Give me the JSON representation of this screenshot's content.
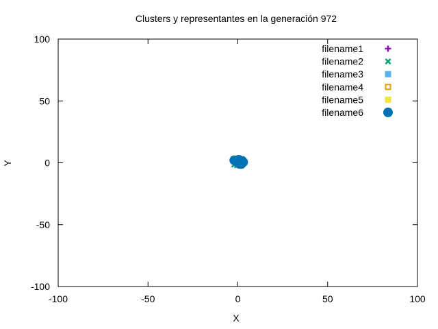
{
  "chart_data": {
    "type": "scatter",
    "title": "Clusters y representantes en la generación 972",
    "xlabel": "X",
    "ylabel": "Y",
    "xlim": [
      -100,
      100
    ],
    "ylim": [
      -100,
      100
    ],
    "xticks": [
      -100,
      -50,
      0,
      50,
      100
    ],
    "yticks": [
      -100,
      -50,
      0,
      50,
      100
    ],
    "x_tick_labels": [
      "-100",
      "-50",
      "0",
      "50",
      "100"
    ],
    "y_tick_labels": [
      "-100",
      "-50",
      "0",
      "50",
      "100"
    ],
    "grid": false,
    "legend_position": "top-right",
    "series": [
      {
        "name": "filename1",
        "marker": "plus",
        "color": "#9400d3",
        "points": []
      },
      {
        "name": "filename2",
        "marker": "cross",
        "color": "#009e73",
        "points": [
          {
            "x": -2.0,
            "y": -1.5
          },
          {
            "x": -0.5,
            "y": -2.0
          },
          {
            "x": 0.5,
            "y": -1.0
          }
        ]
      },
      {
        "name": "filename3",
        "marker": "filled-square",
        "color": "#56b4e9",
        "points": []
      },
      {
        "name": "filename4",
        "marker": "open-square",
        "color": "#e69f00",
        "points": []
      },
      {
        "name": "filename5",
        "marker": "filled-square",
        "color": "#f0e442",
        "points": []
      },
      {
        "name": "filename6",
        "marker": "filled-circle",
        "color": "#0072b2",
        "points": [
          {
            "x": -2.0,
            "y": 2.0
          },
          {
            "x": -1.0,
            "y": 1.0
          },
          {
            "x": 0.0,
            "y": 0.5
          },
          {
            "x": 1.0,
            "y": -1.0
          },
          {
            "x": 1.5,
            "y": 1.5
          },
          {
            "x": 2.0,
            "y": 0.0
          },
          {
            "x": 2.5,
            "y": 1.5
          },
          {
            "x": 2.0,
            "y": -1.0
          },
          {
            "x": 3.0,
            "y": 0.5
          },
          {
            "x": 0.5,
            "y": 2.5
          }
        ]
      }
    ]
  }
}
